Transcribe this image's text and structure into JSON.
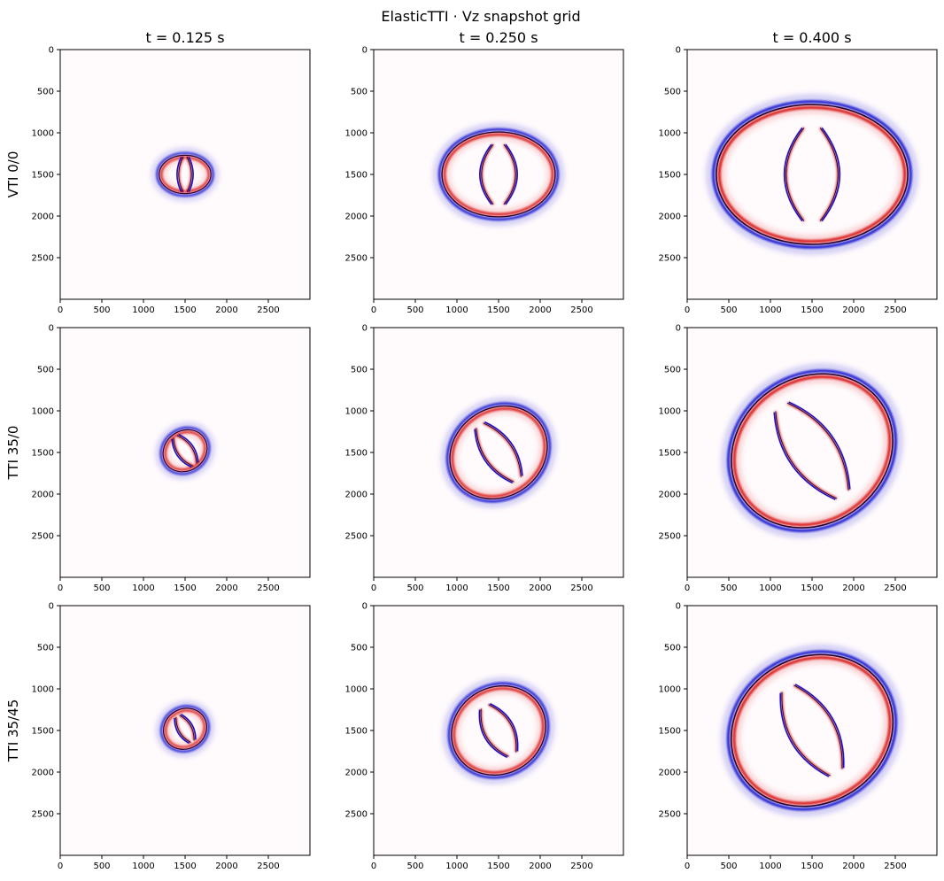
{
  "figure": {
    "suptitle": "ElasticTTI · Vz snapshot grid",
    "column_titles": [
      "t = 0.125 s",
      "t = 0.250 s",
      "t = 0.400 s"
    ],
    "row_labels": [
      "VTI 0/0",
      "TTI 35/0",
      "TTI 35/45"
    ],
    "colors": {
      "positive": "#d40000",
      "negative": "#0000cc",
      "peak": "#1a0033",
      "background": "#fffafc"
    }
  },
  "chart_data": {
    "type": "heatmap",
    "grid": {
      "rows": 3,
      "cols": 3
    },
    "xlim": [
      0,
      3000
    ],
    "ylim": [
      3000,
      0
    ],
    "x_ticks": [
      0,
      500,
      1000,
      1500,
      2000,
      2500
    ],
    "y_ticks": [
      0,
      500,
      1000,
      1500,
      2000,
      2500
    ],
    "x_tick_labels": [
      "0",
      "500",
      "1000",
      "1500",
      "2000",
      "2500"
    ],
    "y_tick_labels": [
      "0",
      "500",
      "1000",
      "1500",
      "2000",
      "2500"
    ],
    "panels": [
      {
        "row": 0,
        "col": 0,
        "row_label": "VTI 0/0",
        "time": "t = 0.125 s",
        "center": [
          1500,
          1500
        ],
        "p_wave": {
          "rx": 310,
          "ry": 230,
          "tilt_deg": 0
        },
        "s_wave": {
          "rx": 95,
          "ry": 210,
          "tilt_deg": 0
        }
      },
      {
        "row": 0,
        "col": 1,
        "row_label": "VTI 0/0",
        "time": "t = 0.250 s",
        "center": [
          1500,
          1500
        ],
        "p_wave": {
          "rx": 680,
          "ry": 510,
          "tilt_deg": 0
        },
        "s_wave": {
          "rx": 255,
          "ry": 360,
          "tilt_deg": 0
        }
      },
      {
        "row": 0,
        "col": 2,
        "row_label": "VTI 0/0",
        "time": "t = 0.400 s",
        "center": [
          1500,
          1500
        ],
        "p_wave": {
          "rx": 1150,
          "ry": 840,
          "tilt_deg": 0
        },
        "s_wave": {
          "rx": 390,
          "ry": 560,
          "tilt_deg": 0
        }
      },
      {
        "row": 1,
        "col": 0,
        "row_label": "TTI 35/0",
        "time": "t = 0.125 s",
        "center": [
          1500,
          1480
        ],
        "p_wave": {
          "rx": 275,
          "ry": 240,
          "tilt_deg": -35
        },
        "s_wave": {
          "rx": 110,
          "ry": 205,
          "tilt_deg": -35
        }
      },
      {
        "row": 1,
        "col": 1,
        "row_label": "TTI 35/0",
        "time": "t = 0.250 s",
        "center": [
          1500,
          1500
        ],
        "p_wave": {
          "rx": 610,
          "ry": 530,
          "tilt_deg": -35
        },
        "s_wave": {
          "rx": 210,
          "ry": 395,
          "tilt_deg": -35
        }
      },
      {
        "row": 1,
        "col": 2,
        "row_label": "TTI 35/0",
        "time": "t = 0.400 s",
        "center": [
          1500,
          1480
        ],
        "p_wave": {
          "rx": 1010,
          "ry": 880,
          "tilt_deg": -35
        },
        "s_wave": {
          "rx": 345,
          "ry": 640,
          "tilt_deg": -35
        }
      },
      {
        "row": 2,
        "col": 0,
        "row_label": "TTI 35/45",
        "time": "t = 0.125 s",
        "center": [
          1500,
          1480
        ],
        "p_wave": {
          "rx": 265,
          "ry": 240,
          "tilt_deg": -30
        },
        "s_wave": {
          "rx": 95,
          "ry": 175,
          "tilt_deg": -30
        }
      },
      {
        "row": 2,
        "col": 1,
        "row_label": "TTI 35/45",
        "time": "t = 0.250 s",
        "center": [
          1500,
          1500
        ],
        "p_wave": {
          "rx": 580,
          "ry": 520,
          "tilt_deg": -30
        },
        "s_wave": {
          "rx": 205,
          "ry": 330,
          "tilt_deg": -30
        }
      },
      {
        "row": 2,
        "col": 2,
        "row_label": "TTI 35/45",
        "time": "t = 0.400 s",
        "center": [
          1500,
          1500
        ],
        "p_wave": {
          "rx": 1000,
          "ry": 880,
          "tilt_deg": -30
        },
        "s_wave": {
          "rx": 330,
          "ry": 580,
          "tilt_deg": -30
        }
      }
    ]
  }
}
